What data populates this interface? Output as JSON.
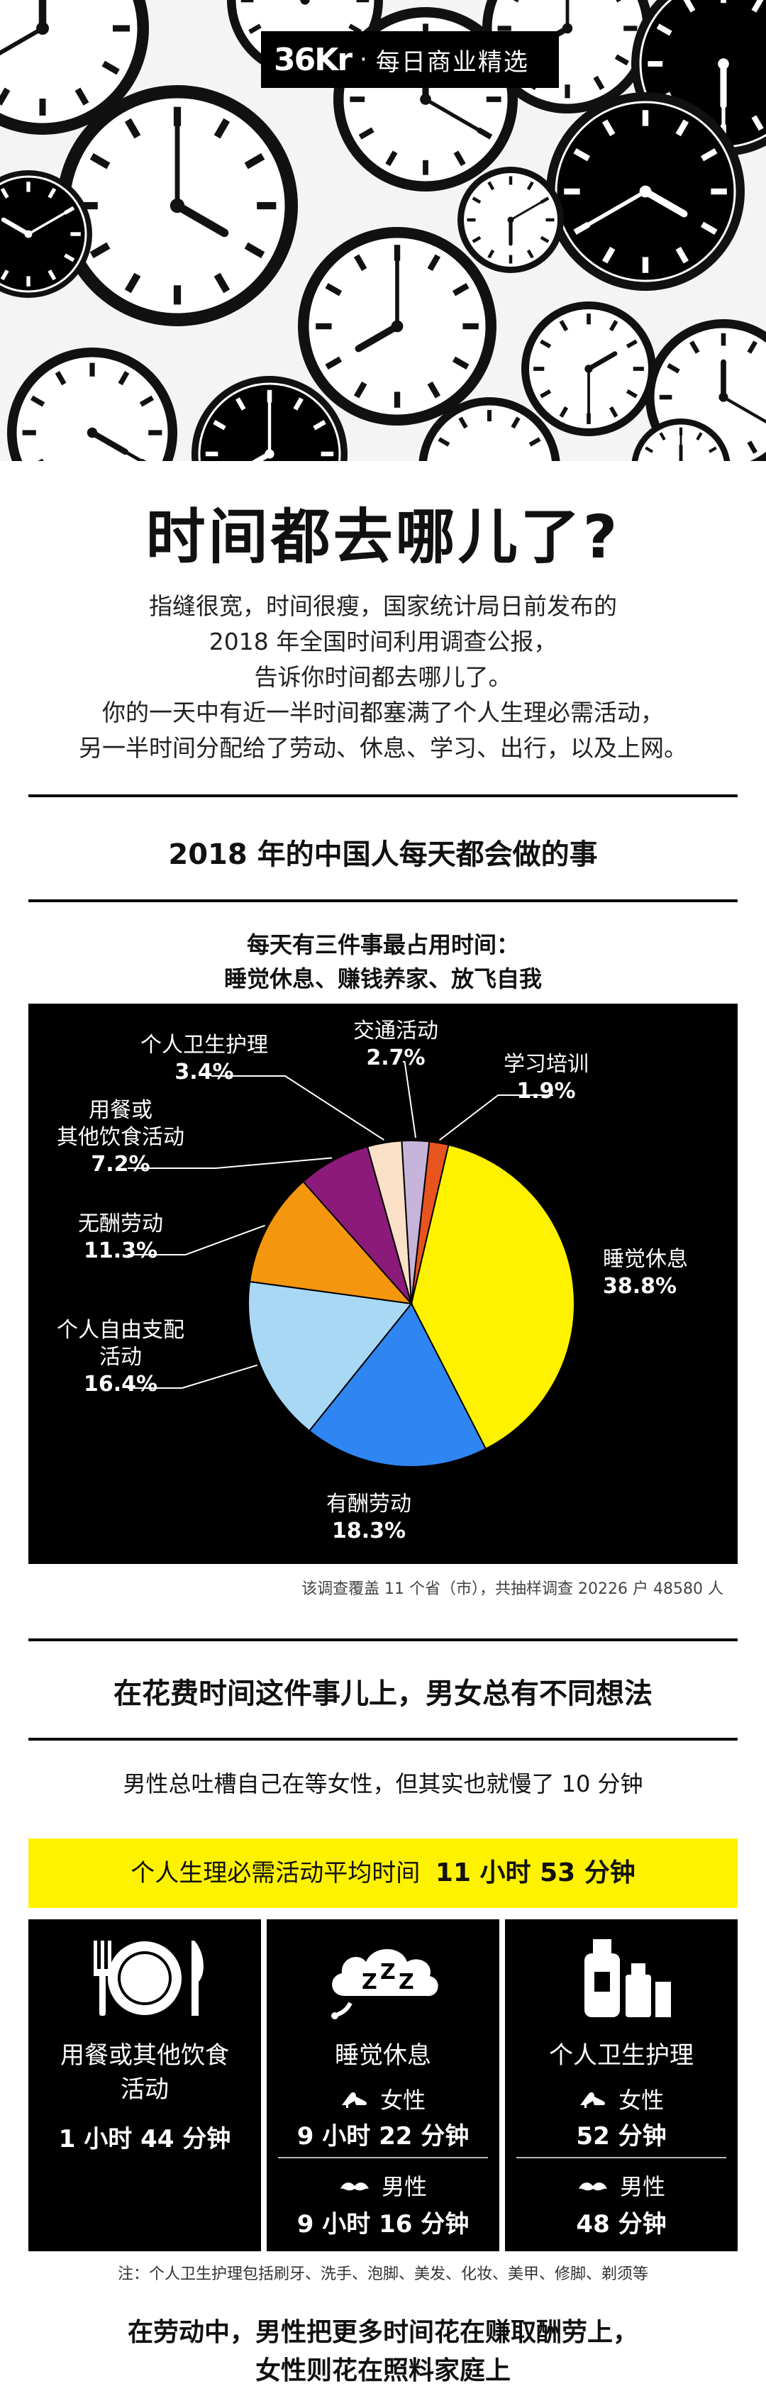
{
  "header": {
    "logo": "36Kr",
    "separator": "·",
    "tagline": "每日商业精选"
  },
  "title": "时间都去哪儿了?",
  "intro": [
    "指缝很宽，时间很瘦，国家统计局日前发布的",
    "2018 年全国时间利用调查公报，",
    "告诉你时间都去哪儿了。",
    "你的一天中有近一半时间都塞满了个人生理必需活动，",
    "另一半时间分配给了劳动、休息、学习、出行，以及上网。"
  ],
  "section1": {
    "title": "2018 年的中国人每天都会做的事",
    "subtitle_line1": "每天有三件事最占用时间：",
    "subtitle_line2": "睡觉休息、赚钱养家、放飞自我",
    "note": "该调查覆盖 11 个省（市），共抽样调查 20226 户 48580 人"
  },
  "chart_data": {
    "type": "pie",
    "title": "2018 年的中国人每天都会做的事",
    "unit": "%",
    "slices": [
      {
        "label": "睡觉休息",
        "label_lines": [
          "睡觉休息"
        ],
        "pct_text": "38.8%",
        "value": 38.8,
        "color": "#fff200"
      },
      {
        "label": "有酬劳动",
        "label_lines": [
          "有酬劳动"
        ],
        "pct_text": "18.3%",
        "value": 18.3,
        "color": "#2f86f2"
      },
      {
        "label": "个人自由支配活动",
        "label_lines": [
          "个人自由支配",
          "活动"
        ],
        "pct_text": "16.4%",
        "value": 16.4,
        "color": "#a9d8f5"
      },
      {
        "label": "无酬劳动",
        "label_lines": [
          "无酬劳动"
        ],
        "pct_text": "11.3%",
        "value": 11.3,
        "color": "#f5960f"
      },
      {
        "label": "用餐或其他饮食活动",
        "label_lines": [
          "用餐或",
          "其他饮食活动"
        ],
        "pct_text": "7.2%",
        "value": 7.2,
        "color": "#8b1a7a"
      },
      {
        "label": "个人卫生护理",
        "label_lines": [
          "个人卫生护理"
        ],
        "pct_text": "3.4%",
        "value": 3.4,
        "color": "#fbe0c8"
      },
      {
        "label": "交通活动",
        "label_lines": [
          "交通活动"
        ],
        "pct_text": "2.7%",
        "value": 2.7,
        "color": "#c7b4da"
      },
      {
        "label": "学习培训",
        "label_lines": [
          "学习培训"
        ],
        "pct_text": "1.9%",
        "value": 1.9,
        "color": "#e8541e"
      }
    ]
  },
  "section2": {
    "title": "在花费时间这件事儿上，男女总有不同想法",
    "subtitle": "男性总吐槽自己在等女性，但其实也就慢了 10 分钟",
    "avg_label": "个人生理必需活动平均时间",
    "avg_value": "11 小时 53 分钟",
    "cards": {
      "eating": {
        "label_line1": "用餐或其他饮食",
        "label_line2": "活动",
        "value": "1 小时 44 分钟",
        "icon": "plate-cutlery-icon"
      },
      "sleep": {
        "label": "睡觉休息",
        "female_label": "女性",
        "female_value": "9 小时 22 分钟",
        "male_label": "男性",
        "male_value": "9 小时 16 分钟",
        "icon": "zzz-cloud-icon"
      },
      "hygiene": {
        "label": "个人卫生护理",
        "female_label": "女性",
        "female_value": "52 分钟",
        "male_label": "男性",
        "male_value": "48 分钟",
        "icon": "toiletries-icon"
      }
    },
    "note": "注：个人卫生护理包括刷牙、洗手、泡脚、美发、化妆、美甲、修脚、剃须等"
  },
  "bottom": {
    "line1": "在劳动中，男性把更多时间花在赚取酬劳上，",
    "line2": "女性则花在照料家庭上"
  }
}
